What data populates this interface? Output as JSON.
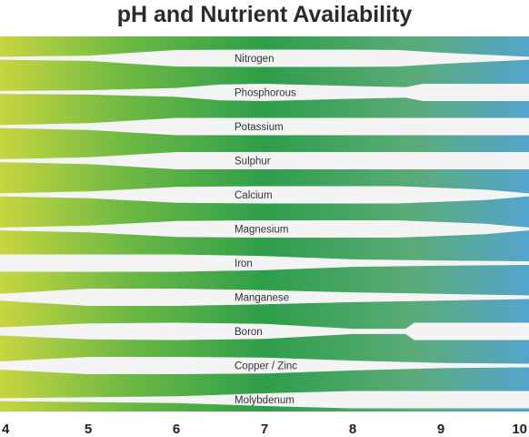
{
  "chart_data": {
    "type": "area",
    "title": "pH and Nutrient Availability",
    "xlabel": "",
    "ylabel": "",
    "x_range": [
      4,
      10
    ],
    "x_ticks": [
      4,
      5,
      6,
      7,
      8,
      9,
      10
    ],
    "gradient_colors": [
      "#c8d640",
      "#6ab844",
      "#2e9e4a",
      "#5aab78",
      "#54a5cd"
    ],
    "grid": false,
    "legend": "none",
    "band_unit": "relative availability (0-1)",
    "nutrients": [
      {
        "name": "Nitrogen",
        "profile": [
          [
            4,
            0.05
          ],
          [
            5,
            0.2
          ],
          [
            6,
            0.95
          ],
          [
            7,
            1.0
          ],
          [
            8,
            1.0
          ],
          [
            8.5,
            0.95
          ],
          [
            9,
            0.6
          ],
          [
            10,
            0.05
          ]
        ]
      },
      {
        "name": "Phosphorous",
        "profile": [
          [
            4,
            0.05
          ],
          [
            5,
            0.15
          ],
          [
            6,
            0.45
          ],
          [
            6.5,
            0.9
          ],
          [
            7,
            1.0
          ],
          [
            8,
            0.7
          ],
          [
            8.6,
            0.55
          ],
          [
            8.8,
            1.0
          ],
          [
            10,
            1.0
          ]
        ]
      },
      {
        "name": "Potassium",
        "profile": [
          [
            4,
            0.05
          ],
          [
            5,
            0.3
          ],
          [
            6,
            1.0
          ],
          [
            10,
            1.0
          ]
        ]
      },
      {
        "name": "Sulphur",
        "profile": [
          [
            4,
            0.05
          ],
          [
            5,
            0.3
          ],
          [
            6,
            1.0
          ],
          [
            10,
            1.0
          ]
        ]
      },
      {
        "name": "Calcium",
        "profile": [
          [
            4,
            0.05
          ],
          [
            5,
            0.3
          ],
          [
            6,
            0.9
          ],
          [
            7,
            1.0
          ],
          [
            8.5,
            1.0
          ],
          [
            9.5,
            0.55
          ],
          [
            10,
            0.05
          ]
        ]
      },
      {
        "name": "Magnesium",
        "profile": [
          [
            4,
            0.05
          ],
          [
            5,
            0.3
          ],
          [
            6,
            0.9
          ],
          [
            7,
            1.0
          ],
          [
            8.5,
            1.0
          ],
          [
            9.5,
            0.55
          ],
          [
            10,
            0.05
          ]
        ]
      },
      {
        "name": "Iron",
        "profile": [
          [
            4,
            1.0
          ],
          [
            6,
            1.0
          ],
          [
            7,
            0.8
          ],
          [
            8,
            0.35
          ],
          [
            9,
            0.2
          ],
          [
            10,
            0.1
          ]
        ]
      },
      {
        "name": "Manganese",
        "profile": [
          [
            4,
            0.3
          ],
          [
            5,
            1.0
          ],
          [
            6,
            1.0
          ],
          [
            7,
            0.8
          ],
          [
            8,
            0.5
          ],
          [
            9,
            0.3
          ],
          [
            10,
            0.1
          ]
        ]
      },
      {
        "name": "Boron",
        "profile": [
          [
            4,
            0.4
          ],
          [
            5,
            0.9
          ],
          [
            6,
            1.0
          ],
          [
            7,
            0.85
          ],
          [
            8,
            0.2
          ],
          [
            8.6,
            0.2
          ],
          [
            8.7,
            1.0
          ],
          [
            10,
            1.0
          ]
        ]
      },
      {
        "name": "Copper / Zinc",
        "profile": [
          [
            4,
            0.4
          ],
          [
            5,
            1.0
          ],
          [
            6,
            1.0
          ],
          [
            7,
            0.9
          ],
          [
            8,
            0.5
          ],
          [
            9,
            0.2
          ],
          [
            10,
            0.1
          ]
        ]
      },
      {
        "name": "Molybdenum",
        "profile": [
          [
            4,
            0.05
          ],
          [
            6,
            0.3
          ],
          [
            7,
            0.7
          ],
          [
            8,
            1.0
          ],
          [
            10,
            1.0
          ]
        ]
      }
    ]
  }
}
